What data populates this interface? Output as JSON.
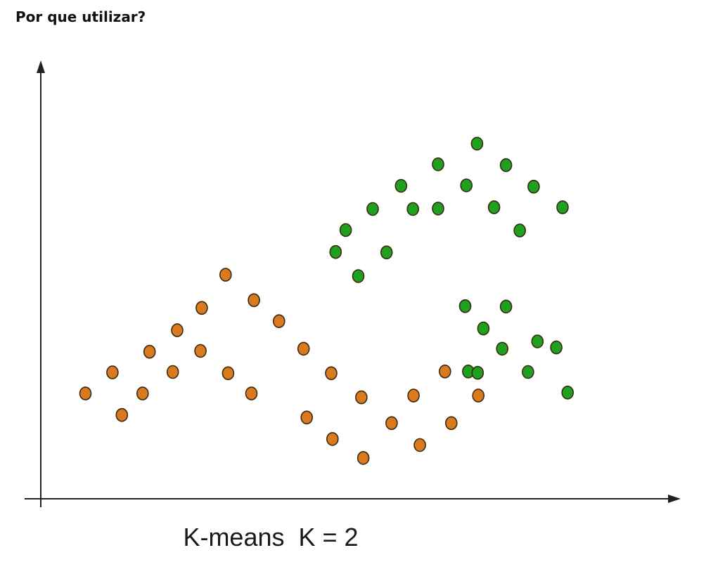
{
  "page": {
    "heading": "Por que utilizar?"
  },
  "chart_data": {
    "type": "scatter",
    "title": "",
    "xlabel": "",
    "ylabel": "",
    "caption": "K-means  K = 2",
    "xlim": [
      0,
      100
    ],
    "ylim": [
      0,
      100
    ],
    "grid": false,
    "legend": "none",
    "series": [
      {
        "color": "#d97a1e",
        "points": [
          [
            7.1,
            24.5
          ],
          [
            12.9,
            19.5
          ],
          [
            11.4,
            29.4
          ],
          [
            17.3,
            34.2
          ],
          [
            16.2,
            24.5
          ],
          [
            21.7,
            39.2
          ],
          [
            21.0,
            29.5
          ],
          [
            25.6,
            44.4
          ],
          [
            25.4,
            34.4
          ],
          [
            29.4,
            52.1
          ],
          [
            29.8,
            29.2
          ],
          [
            33.9,
            46.2
          ],
          [
            33.5,
            24.5
          ],
          [
            37.9,
            41.3
          ],
          [
            41.8,
            34.9
          ],
          [
            42.3,
            18.9
          ],
          [
            46.2,
            29.2
          ],
          [
            46.4,
            13.9
          ],
          [
            51.0,
            23.6
          ],
          [
            51.3,
            9.5
          ],
          [
            55.8,
            17.6
          ],
          [
            59.3,
            24.0
          ],
          [
            60.3,
            12.5
          ],
          [
            64.3,
            29.6
          ],
          [
            65.3,
            17.6
          ],
          [
            69.6,
            24.0
          ]
        ]
      },
      {
        "color": "#1fa01f",
        "points": [
          [
            46.9,
            57.4
          ],
          [
            50.5,
            51.8
          ],
          [
            48.5,
            62.5
          ],
          [
            52.8,
            67.4
          ],
          [
            55.0,
            57.3
          ],
          [
            57.3,
            72.8
          ],
          [
            59.2,
            67.4
          ],
          [
            63.2,
            67.5
          ],
          [
            63.2,
            77.8
          ],
          [
            67.7,
            72.9
          ],
          [
            69.4,
            82.6
          ],
          [
            72.1,
            67.8
          ],
          [
            74.0,
            77.6
          ],
          [
            76.2,
            62.4
          ],
          [
            78.4,
            72.6
          ],
          [
            83.0,
            67.8
          ],
          [
            67.5,
            44.8
          ],
          [
            68.0,
            29.6
          ],
          [
            70.4,
            39.6
          ],
          [
            73.4,
            34.9
          ],
          [
            74.0,
            44.7
          ],
          [
            77.5,
            29.5
          ],
          [
            79.0,
            36.6
          ],
          [
            82.0,
            35.2
          ],
          [
            83.8,
            24.7
          ],
          [
            69.5,
            29.3
          ]
        ]
      }
    ]
  },
  "colors": {
    "axis": "#222222",
    "marker_stroke": "#3a2a10"
  }
}
